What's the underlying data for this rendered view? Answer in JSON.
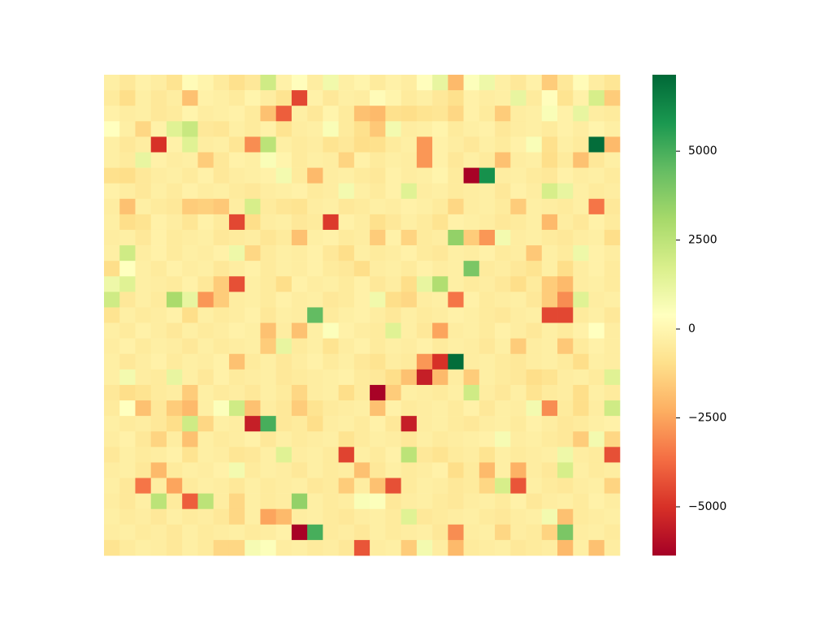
{
  "chart_data": {
    "type": "heatmap",
    "colormap": [
      "#a50026",
      "#d73027",
      "#f46d43",
      "#fdae61",
      "#fee08b",
      "#ffffbf",
      "#d9ef8b",
      "#a6d96a",
      "#66bd63",
      "#1a9850",
      "#006837"
    ],
    "zlim": [
      -6370,
      7150
    ],
    "zticks": [
      {
        "value": -5000,
        "label": "−5000"
      },
      {
        "value": -2500,
        "label": "−2500"
      },
      0,
      2500,
      5000
    ],
    "values": [
      [
        -300,
        -600,
        -200,
        -400,
        -800,
        200,
        -100,
        -500,
        -900,
        -600,
        2000,
        -200,
        300,
        -400,
        900,
        -300,
        -100,
        -500,
        -200,
        -400,
        300,
        1200,
        -2000,
        500,
        1000,
        -300,
        -600,
        -200,
        -1500,
        -600,
        200,
        -400,
        -700
      ],
      [
        -500,
        -1000,
        -300,
        -600,
        -400,
        -1800,
        -200,
        -300,
        -500,
        -100,
        -400,
        -800,
        -4500,
        -200,
        -600,
        -300,
        -400,
        200,
        -100,
        -500,
        -300,
        -600,
        -900,
        -200,
        -400,
        -300,
        1200,
        -500,
        300,
        -800,
        -200,
        1800,
        -1500
      ],
      [
        -200,
        -400,
        -300,
        -600,
        -500,
        -100,
        -400,
        -300,
        -200,
        -500,
        -1800,
        -4000,
        -300,
        -600,
        -100,
        -500,
        -1800,
        -2000,
        -900,
        -1000,
        -800,
        -700,
        -1200,
        -200,
        -500,
        -1500,
        -400,
        -300,
        600,
        -200,
        1200,
        -400,
        -500
      ],
      [
        400,
        -300,
        -1200,
        -200,
        1500,
        2200,
        -600,
        -700,
        -300,
        -500,
        -200,
        -800,
        -400,
        -300,
        600,
        -500,
        -900,
        -1600,
        800,
        -400,
        -300,
        -100,
        -500,
        -300,
        -200,
        -600,
        -400,
        -300,
        -500,
        -200,
        -400,
        -100,
        -300
      ],
      [
        -300,
        -600,
        -400,
        -5000,
        -200,
        1500,
        -400,
        -300,
        -700,
        -3000,
        2500,
        -300,
        -500,
        -400,
        -800,
        -600,
        -1000,
        -900,
        -500,
        -300,
        -2800,
        -200,
        -400,
        -600,
        -300,
        -500,
        -200,
        600,
        -900,
        -300,
        -500,
        7000,
        -2000
      ],
      [
        -300,
        -500,
        1200,
        -200,
        -400,
        -300,
        -1500,
        -600,
        -200,
        -300,
        600,
        -100,
        -500,
        -300,
        -400,
        -1300,
        -200,
        -500,
        -300,
        -400,
        -2800,
        -200,
        -600,
        -300,
        -500,
        -1800,
        -400,
        -300,
        -1000,
        -500,
        -1800,
        -600,
        -300
      ],
      [
        -900,
        -1000,
        -600,
        -400,
        -300,
        -500,
        -200,
        -600,
        -400,
        -300,
        -200,
        800,
        -500,
        -2000,
        -400,
        -300,
        -500,
        -600,
        -200,
        -400,
        -300,
        -100,
        -500,
        -6300,
        6000,
        -400,
        -300,
        -500,
        -600,
        -200,
        -400,
        -300,
        -500
      ],
      [
        -200,
        -400,
        -600,
        -300,
        -500,
        -200,
        -400,
        -300,
        -500,
        -600,
        -400,
        -300,
        -200,
        -500,
        -400,
        800,
        -300,
        -500,
        -200,
        1500,
        -400,
        -300,
        -500,
        -400,
        -300,
        -600,
        -200,
        -400,
        1800,
        1200,
        -300,
        -500,
        -400
      ],
      [
        -400,
        -1800,
        -300,
        -500,
        -600,
        -1500,
        -1400,
        -1600,
        -400,
        1800,
        -500,
        -700,
        -800,
        -400,
        -300,
        -600,
        -500,
        -300,
        -400,
        -200,
        -300,
        -500,
        -1200,
        -400,
        -300,
        -500,
        -1500,
        -300,
        -400,
        -500,
        -300,
        -3500,
        -600
      ],
      [
        -300,
        -1000,
        -800,
        -200,
        -400,
        -700,
        -200,
        -500,
        -4500,
        -1000,
        -400,
        -300,
        -600,
        -500,
        -4800,
        -200,
        -400,
        -900,
        -600,
        -300,
        -500,
        -800,
        -200,
        -300,
        -400,
        -600,
        -500,
        -300,
        -2000,
        -400,
        -600,
        -200,
        -500
      ],
      [
        -400,
        -300,
        -600,
        -200,
        -500,
        -400,
        -300,
        -600,
        -500,
        -400,
        -700,
        -500,
        -1800,
        -300,
        -200,
        -500,
        -400,
        -1500,
        -200,
        -1300,
        -500,
        -400,
        3500,
        -1500,
        -2800,
        800,
        -400,
        -300,
        -500,
        -600,
        -400,
        -300,
        -1000
      ],
      [
        -300,
        2000,
        -400,
        -200,
        -500,
        -300,
        -400,
        -200,
        1000,
        -1200,
        -500,
        -300,
        -400,
        -200,
        -600,
        -1000,
        -300,
        -500,
        -400,
        -200,
        -500,
        -600,
        -300,
        -400,
        -200,
        -500,
        -400,
        -1600,
        -300,
        -500,
        1000,
        -200,
        -400
      ],
      [
        -1000,
        400,
        -300,
        -500,
        -200,
        -400,
        -300,
        -600,
        -400,
        -200,
        -500,
        -300,
        -400,
        -200,
        -500,
        -600,
        -1000,
        -400,
        -300,
        -500,
        -200,
        -400,
        -300,
        4000,
        -500,
        -400,
        -600,
        -800,
        -300,
        -1000,
        -400,
        -200,
        -500
      ],
      [
        1000,
        1500,
        -300,
        -400,
        -500,
        -200,
        -600,
        -1500,
        -4300,
        -300,
        -500,
        -1000,
        -200,
        -400,
        -300,
        -500,
        -200,
        -600,
        -400,
        -1000,
        1200,
        2800,
        -300,
        -500,
        -400,
        -600,
        -1000,
        -500,
        -1500,
        -2000,
        -400,
        -300,
        -500
      ],
      [
        2000,
        -600,
        -300,
        -500,
        3000,
        1200,
        -2800,
        -1500,
        -400,
        -300,
        -500,
        -200,
        -400,
        -300,
        -600,
        -500,
        -200,
        900,
        -1000,
        -1200,
        -400,
        -300,
        -3500,
        -200,
        -500,
        -400,
        -300,
        -600,
        -1500,
        -3000,
        1500,
        -400,
        -300
      ],
      [
        -800,
        -300,
        -500,
        -400,
        -200,
        -1000,
        -300,
        -500,
        -400,
        -200,
        -600,
        -300,
        -400,
        4500,
        -500,
        -300,
        -200,
        -400,
        -600,
        -300,
        -500,
        -400,
        -200,
        -300,
        -500,
        -600,
        -400,
        -300,
        -4500,
        -4500,
        -500,
        -300,
        -600
      ],
      [
        -300,
        -500,
        -200,
        -400,
        -600,
        -300,
        -500,
        -400,
        -200,
        -300,
        -1800,
        -400,
        -1800,
        -300,
        500,
        -200,
        -400,
        -500,
        1500,
        -300,
        -600,
        -2500,
        -400,
        -300,
        -500,
        -200,
        -400,
        -600,
        -300,
        -500,
        -200,
        400,
        -400
      ],
      [
        -400,
        -200,
        -500,
        -300,
        -400,
        -600,
        -300,
        -500,
        -400,
        -300,
        -1500,
        1200,
        -500,
        -300,
        -800,
        -400,
        -200,
        -500,
        -300,
        -400,
        -200,
        -500,
        -300,
        -400,
        -600,
        -300,
        -1500,
        -400,
        -300,
        -1600,
        -500,
        -200,
        -400
      ],
      [
        -300,
        -600,
        -400,
        -200,
        -500,
        -300,
        -400,
        -200,
        -1800,
        -500,
        -300,
        -600,
        -400,
        -200,
        -500,
        -300,
        -600,
        -800,
        -400,
        -500,
        -2800,
        -5000,
        7000,
        -400,
        -300,
        -500,
        -600,
        -400,
        -300,
        -500,
        -1000,
        -300,
        -400
      ],
      [
        -300,
        800,
        -400,
        -500,
        1200,
        -300,
        -600,
        -200,
        -500,
        -400,
        -300,
        -600,
        -500,
        -400,
        -300,
        -200,
        -500,
        -600,
        -1000,
        -1800,
        -5500,
        -2000,
        -400,
        -1500,
        -300,
        -500,
        -600,
        -1000,
        -800,
        -400,
        -300,
        -500,
        1500
      ],
      [
        -600,
        -1000,
        -800,
        -500,
        -400,
        -1500,
        -300,
        -500,
        -400,
        -600,
        -300,
        -500,
        -1200,
        -400,
        -300,
        -1000,
        -500,
        -6300,
        -1500,
        -300,
        -400,
        -500,
        -300,
        2000,
        -400,
        -600,
        -300,
        -800,
        -500,
        -400,
        -1000,
        -300,
        -500
      ],
      [
        -500,
        400,
        -1800,
        -600,
        -1500,
        -2000,
        -300,
        500,
        2000,
        -1800,
        -400,
        -600,
        -1500,
        -800,
        -500,
        -400,
        -300,
        -1800,
        -200,
        -500,
        -400,
        -300,
        -500,
        -200,
        -600,
        -300,
        -400,
        800,
        -3000,
        -500,
        -1000,
        -400,
        2000
      ],
      [
        -300,
        -500,
        -400,
        -600,
        -1000,
        2000,
        -1200,
        -300,
        -400,
        -5500,
        5000,
        -600,
        -500,
        -1000,
        -400,
        -300,
        -500,
        -200,
        -600,
        -5500,
        -400,
        -300,
        -500,
        -600,
        -400,
        -300,
        -500,
        -200,
        -400,
        -600,
        -500,
        -300,
        -200
      ],
      [
        -400,
        -200,
        -600,
        -1300,
        -400,
        -1800,
        -300,
        -500,
        -400,
        -200,
        -600,
        -300,
        -500,
        -400,
        -300,
        -800,
        -500,
        -300,
        -400,
        -600,
        -300,
        -500,
        -400,
        -300,
        -200,
        700,
        -400,
        -300,
        -500,
        -600,
        -1500,
        800,
        -1200
      ],
      [
        -600,
        -300,
        -500,
        -400,
        -200,
        -800,
        -300,
        -400,
        -700,
        -600,
        -300,
        1500,
        -400,
        -300,
        -500,
        -4600,
        -300,
        -500,
        -200,
        2500,
        -600,
        -800,
        -500,
        -400,
        -800,
        -300,
        -500,
        -400,
        -300,
        1000,
        -400,
        -500,
        -4300
      ],
      [
        -400,
        -300,
        -600,
        -2000,
        -500,
        -300,
        -400,
        -200,
        800,
        -500,
        -300,
        -400,
        -600,
        -300,
        -500,
        -400,
        -1800,
        -600,
        -300,
        -500,
        -400,
        -200,
        -1000,
        -500,
        -2000,
        -300,
        -2200,
        -400,
        -600,
        1800,
        -300,
        -500,
        -400
      ],
      [
        -300,
        -600,
        -3500,
        -400,
        -2500,
        -500,
        -300,
        -400,
        -600,
        -300,
        -500,
        -400,
        -300,
        -600,
        -500,
        -1500,
        -400,
        -1800,
        -4300,
        -500,
        -300,
        -400,
        -600,
        -500,
        -1200,
        1800,
        -4200,
        -300,
        -500,
        -600,
        -400,
        -300,
        -1300
      ],
      [
        -400,
        -600,
        -300,
        2500,
        -500,
        -4000,
        2500,
        -400,
        -1200,
        -300,
        -500,
        -400,
        3500,
        -300,
        -500,
        -400,
        600,
        500,
        -600,
        -400,
        -300,
        -500,
        -600,
        -400,
        -300,
        -500,
        -200,
        -600,
        -400,
        -300,
        -500,
        -200,
        -400
      ],
      [
        -300,
        -500,
        -400,
        -600,
        -300,
        -500,
        -400,
        -600,
        -1200,
        -300,
        -2500,
        -2000,
        -400,
        -300,
        -500,
        -600,
        -400,
        -300,
        -500,
        1500,
        -600,
        -500,
        -400,
        -300,
        -500,
        -600,
        -400,
        -300,
        800,
        -1800,
        -500,
        -400,
        -300
      ],
      [
        -400,
        -300,
        -500,
        -400,
        -600,
        -300,
        -500,
        -400,
        -300,
        -500,
        -400,
        -200,
        -6300,
        5000,
        -500,
        -400,
        -600,
        -300,
        -500,
        -400,
        -300,
        -600,
        -3000,
        -400,
        -300,
        -1200,
        -400,
        -500,
        -1300,
        4000,
        -400,
        -300,
        -500
      ],
      [
        -800,
        -500,
        -300,
        -400,
        -600,
        -300,
        -500,
        -1200,
        -1200,
        700,
        500,
        -400,
        -300,
        -500,
        -400,
        -600,
        -4200,
        -400,
        -300,
        -1500,
        800,
        -400,
        -2000,
        -500,
        -400,
        -300,
        -600,
        -500,
        -400,
        -2000,
        -300,
        -1800,
        -400
      ]
    ]
  }
}
